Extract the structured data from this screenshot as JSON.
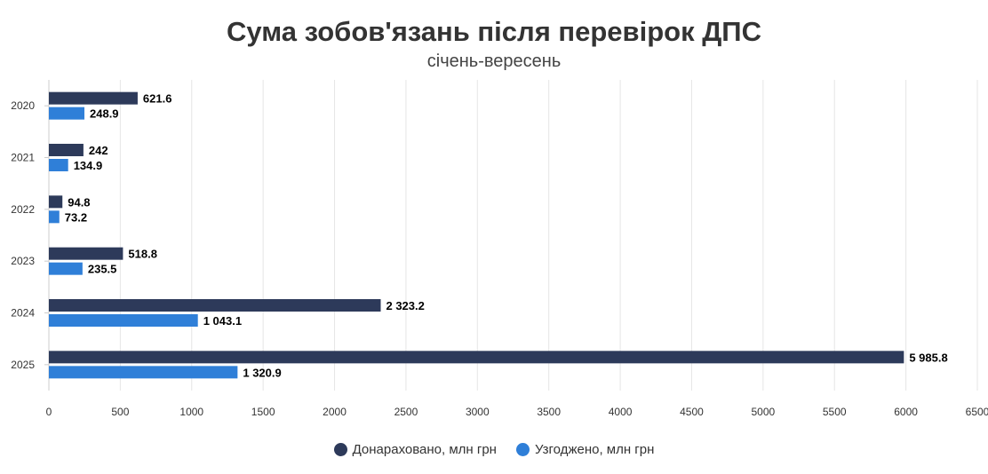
{
  "chart_data": {
    "type": "bar",
    "orientation": "horizontal",
    "title": "Сума зобов'язань після перевірок ДПС",
    "subtitle": "січень-вересень",
    "categories": [
      "2020",
      "2021",
      "2022",
      "2023",
      "2024",
      "2025"
    ],
    "series": [
      {
        "name": "Донараховано, млн грн",
        "color": "#2d3a5a",
        "values": [
          621.6,
          242,
          94.8,
          518.8,
          2323.2,
          5985.8
        ],
        "labels": [
          "621.6",
          "242",
          "94.8",
          "518.8",
          "2 323.2",
          "5 985.8"
        ]
      },
      {
        "name": "Узгоджено, млн грн",
        "color": "#2f7fd8",
        "values": [
          248.9,
          134.9,
          73.2,
          235.5,
          1043.1,
          1320.9
        ],
        "labels": [
          "248.9",
          "134.9",
          "73.2",
          "235.5",
          "1 043.1",
          "1 320.9"
        ]
      }
    ],
    "xlim": [
      0,
      6500
    ],
    "xticks": [
      0,
      500,
      1000,
      1500,
      2000,
      2500,
      3000,
      3500,
      4000,
      4500,
      5000,
      5500,
      6000,
      6500
    ],
    "grid": true,
    "legend_position": "bottom"
  }
}
